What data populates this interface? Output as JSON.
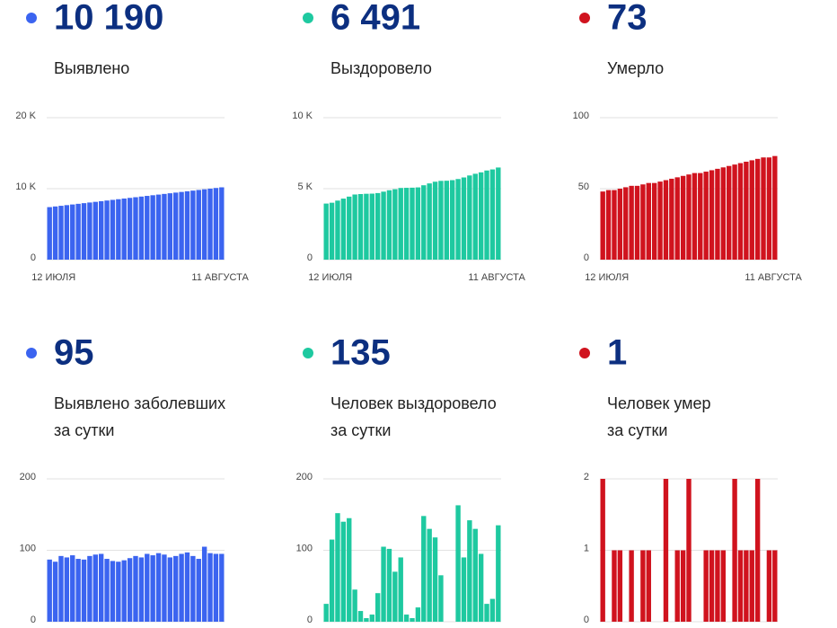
{
  "chart_data": [
    {
      "type": "bar",
      "headline": "10 190",
      "title": [
        "Выявлено"
      ],
      "color": "#3b64f0",
      "categories": [
        "12 ИЮЛЯ",
        null,
        null,
        null,
        null,
        null,
        null,
        null,
        null,
        null,
        null,
        null,
        null,
        null,
        null,
        null,
        null,
        null,
        null,
        null,
        null,
        null,
        null,
        null,
        null,
        null,
        null,
        null,
        null,
        null,
        "11 АВГУСТА"
      ],
      "values": [
        7400,
        7493,
        7586,
        7679,
        7772,
        7865,
        7958,
        8051,
        8144,
        8237,
        8330,
        8423,
        8516,
        8609,
        8702,
        8795,
        8888,
        8981,
        9074,
        9167,
        9260,
        9353,
        9446,
        9539,
        9632,
        9725,
        9818,
        9911,
        10004,
        10097,
        10190
      ],
      "ylim": [
        0,
        20000
      ],
      "yticks": [
        0,
        {
          "value": 10000,
          "label": "10 K"
        },
        {
          "value": 20000,
          "label": "20 K"
        }
      ],
      "grid": true
    },
    {
      "type": "bar",
      "headline": "6 491",
      "title": [
        "Выздоровело"
      ],
      "color": "#1ec9a0",
      "categories": [
        "12 ИЮЛЯ",
        null,
        null,
        null,
        null,
        null,
        null,
        null,
        null,
        null,
        null,
        null,
        null,
        null,
        null,
        null,
        null,
        null,
        null,
        null,
        null,
        null,
        null,
        null,
        null,
        null,
        null,
        null,
        null,
        null,
        "11 АВГУСТА"
      ],
      "values": [
        3950,
        4010,
        4160,
        4300,
        4440,
        4590,
        4620,
        4640,
        4650,
        4690,
        4790,
        4890,
        4960,
        5050,
        5060,
        5070,
        5090,
        5240,
        5370,
        5490,
        5550,
        5560,
        5600,
        5680,
        5790,
        5930,
        6050,
        6150,
        6280,
        6356,
        6491
      ],
      "ylim": [
        0,
        10000
      ],
      "yticks": [
        0,
        {
          "value": 5000,
          "label": "5 K"
        },
        {
          "value": 10000,
          "label": "10 K"
        }
      ],
      "grid": true
    },
    {
      "type": "bar",
      "headline": "73",
      "title": [
        "Умерло"
      ],
      "color": "#d0131e",
      "categories": [
        "12 ИЮЛЯ",
        null,
        null,
        null,
        null,
        null,
        null,
        null,
        null,
        null,
        null,
        null,
        null,
        null,
        null,
        null,
        null,
        null,
        null,
        null,
        null,
        null,
        null,
        null,
        null,
        null,
        null,
        null,
        null,
        null,
        "11 АВГУСТА"
      ],
      "values": [
        48,
        49,
        49,
        50,
        51,
        52,
        52,
        53,
        54,
        54,
        55,
        56,
        57,
        58,
        59,
        60,
        61,
        61,
        62,
        63,
        64,
        65,
        66,
        67,
        68,
        69,
        70,
        71,
        72,
        72,
        73
      ],
      "ylim": [
        0,
        100
      ],
      "yticks": [
        0,
        50,
        100
      ],
      "grid": true
    },
    {
      "type": "bar",
      "headline": "95",
      "title": [
        "Выявлено заболевших",
        "за сутки"
      ],
      "color": "#3b64f0",
      "values": [
        87,
        84,
        92,
        90,
        93,
        88,
        87,
        92,
        94,
        95,
        88,
        85,
        84,
        86,
        89,
        92,
        90,
        95,
        93,
        96,
        94,
        90,
        92,
        95,
        97,
        92,
        88,
        105,
        96,
        95,
        95
      ],
      "ylim": [
        0,
        200
      ],
      "yticks": [
        0,
        100,
        200
      ],
      "grid": true
    },
    {
      "type": "bar",
      "headline": "135",
      "title": [
        "Человек выздоровело",
        "за сутки"
      ],
      "color": "#1ec9a0",
      "values": [
        25,
        115,
        152,
        140,
        145,
        45,
        15,
        5,
        10,
        40,
        105,
        102,
        70,
        90,
        10,
        5,
        20,
        148,
        130,
        118,
        65,
        0,
        0,
        163,
        90,
        142,
        130,
        95,
        25,
        32,
        135
      ],
      "ylim": [
        0,
        200
      ],
      "yticks": [
        0,
        100,
        200
      ],
      "grid": true
    },
    {
      "type": "bar",
      "headline": "1",
      "title": [
        "Человек умер",
        "за сутки"
      ],
      "color": "#d0131e",
      "values": [
        2,
        0,
        1,
        1,
        0,
        1,
        0,
        1,
        1,
        0,
        0,
        2,
        0,
        1,
        1,
        2,
        0,
        0,
        1,
        1,
        1,
        1,
        0,
        2,
        1,
        1,
        1,
        2,
        0,
        1,
        1
      ],
      "ylim": [
        0,
        2
      ],
      "yticks": [
        0,
        1,
        2
      ],
      "grid": true
    }
  ]
}
